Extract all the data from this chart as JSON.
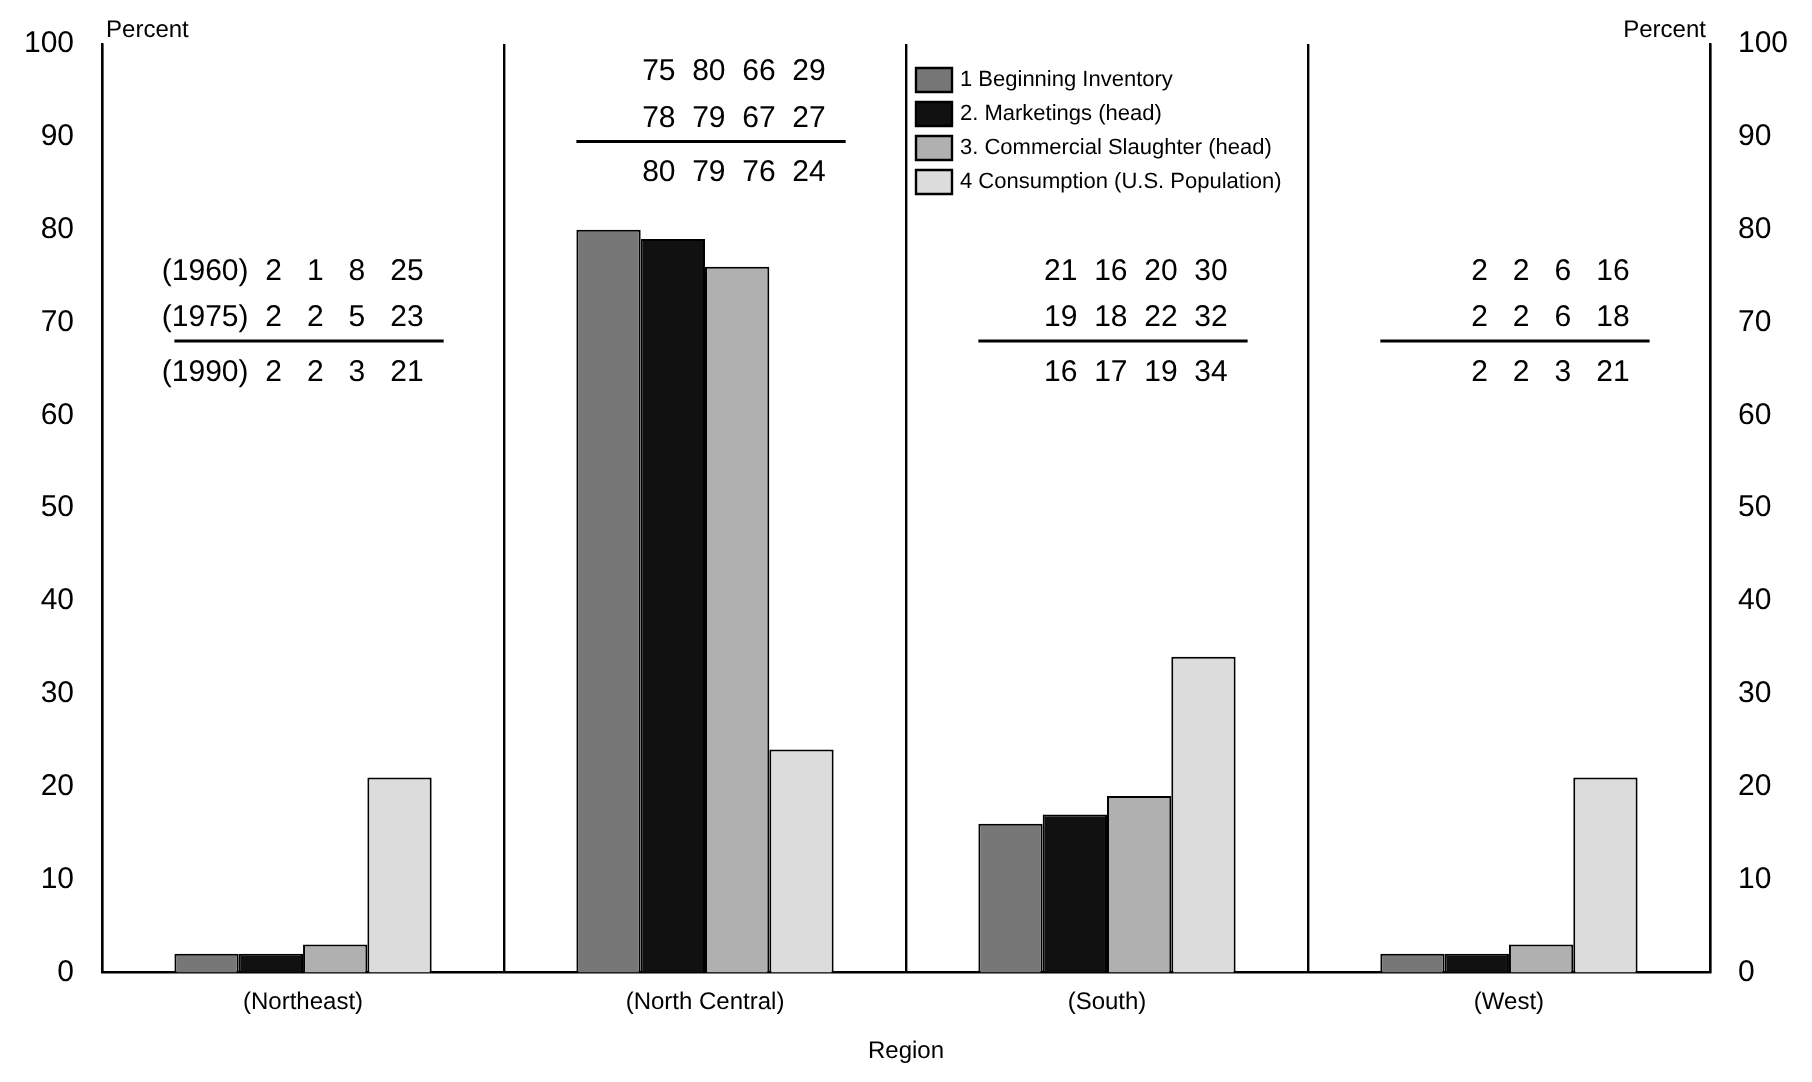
{
  "chart_data": {
    "type": "bar",
    "xlabel": "Region",
    "ylabel": "Percent",
    "y2label": "Percent",
    "categories": [
      "(Northeast)",
      "(North Central)",
      "(South)",
      "(West)"
    ],
    "series": [
      {
        "name": "1 Beginning Inventory",
        "color": "#777777",
        "values": [
          2,
          80,
          16,
          2
        ]
      },
      {
        "name": "2. Marketings (head)",
        "color": "#111111",
        "values": [
          2,
          79,
          17,
          2
        ]
      },
      {
        "name": "3. Commercial Slaughter (head)",
        "color": "#b0b0b0",
        "values": [
          3,
          76,
          19,
          3
        ]
      },
      {
        "name": "4 Consumption (U.S. Population)",
        "color": "#dcdcdc",
        "values": [
          21,
          24,
          34,
          21
        ]
      }
    ],
    "ylim": [
      0,
      100
    ],
    "yticks": [
      0,
      10,
      20,
      30,
      40,
      50,
      60,
      70,
      80,
      90,
      100
    ],
    "y2lim": [
      0,
      100
    ],
    "y2ticks": [
      0,
      10,
      20,
      30,
      40,
      50,
      60,
      70,
      80,
      90,
      100
    ],
    "grid": "x",
    "legend": "top right",
    "annotations": [
      "(1960)  2   1   8   25",
      "(1975)  2   2   5   23",
      "(1990)  2   2   3   21",
      "75  80  66  29",
      "78  79  67  27",
      "80  79  76  24",
      "21  16  20  30",
      "19  18  22  32",
      "16  17  19  34",
      "2   2   6   16",
      "2   2   6   18",
      "2   2   3   21"
    ]
  }
}
